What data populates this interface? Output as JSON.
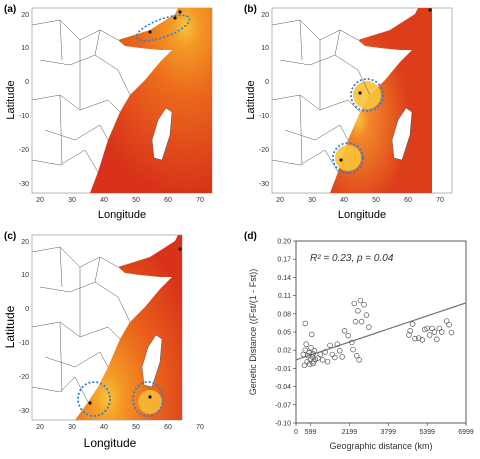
{
  "colors": {
    "sea_red": "#e03a1a",
    "sea_orange": "#f07d1e",
    "sea_yellow": "#f8c33a",
    "land_line": "#555555",
    "madagascar": "#ffffff",
    "circle": "#2a7fd4",
    "point": "#111111",
    "scatter_line": "#777777"
  },
  "panels": [
    {
      "label": "(a)",
      "xlabel": "Longitude",
      "ylabel": "Latitude",
      "x_ticks": [
        "20",
        "30",
        "40",
        "50",
        "60",
        "70"
      ],
      "y_ticks": [
        "20",
        "10",
        "0",
        "-10",
        "-20",
        "-30"
      ]
    },
    {
      "label": "(b)",
      "xlabel": "Longitude",
      "ylabel": "Latitude",
      "x_ticks": [
        "20",
        "30",
        "40",
        "50",
        "60",
        "70"
      ],
      "y_ticks": [
        "20",
        "10",
        "0",
        "-10",
        "-20",
        "-30"
      ]
    },
    {
      "label": "(c)",
      "xlabel": "Longitude",
      "ylabel": "Latitude",
      "x_ticks": [
        "20",
        "30",
        "40",
        "50",
        "60",
        "70"
      ],
      "y_ticks": [
        "20",
        "10",
        "0",
        "-10",
        "-20",
        "-30"
      ]
    }
  ],
  "chart_data": {
    "type": "scatter",
    "label": "(d)",
    "annotation": "R² = 0.23, p = 0.04",
    "xlabel": "Geographic distance (km)",
    "ylabel": "Genetic Distance ((Fst/(1 - Fst))",
    "x_ticks": [
      "0",
      "599",
      "2199",
      "3799",
      "5399",
      "6999"
    ],
    "x_tick_values": [
      0,
      599,
      2199,
      3799,
      5399,
      6999
    ],
    "y_ticks": [
      "0.20",
      "0.17",
      "0.14",
      "0.11",
      "0.08",
      "0.05",
      "0.02",
      "-0.01",
      "-0.04",
      "-0.07",
      "-0.10"
    ],
    "y_tick_values": [
      0.2,
      0.17,
      0.14,
      0.11,
      0.08,
      0.05,
      0.02,
      -0.01,
      -0.04,
      -0.07,
      -0.1
    ],
    "xlim": [
      0,
      6999
    ],
    "ylim": [
      -0.1,
      0.2
    ],
    "trendline": [
      [
        0,
        0.004
      ],
      [
        6999,
        0.098
      ]
    ],
    "points": [
      [
        300,
        0.013
      ],
      [
        350,
        -0.005
      ],
      [
        380,
        0.02
      ],
      [
        420,
        0.03
      ],
      [
        460,
        0.001
      ],
      [
        500,
        0.011
      ],
      [
        540,
        0.016
      ],
      [
        560,
        -0.003
      ],
      [
        600,
        0.005
      ],
      [
        620,
        0.024
      ],
      [
        680,
        0.009
      ],
      [
        700,
        0.014
      ],
      [
        730,
        0.001
      ],
      [
        760,
        0.019
      ],
      [
        800,
        0.005
      ],
      [
        380,
        0.064
      ],
      [
        650,
        0.046
      ],
      [
        700,
        -0.002
      ],
      [
        900,
        0.007
      ],
      [
        1000,
        0.013
      ],
      [
        1100,
        0.004
      ],
      [
        1200,
        0.017
      ],
      [
        1300,
        0.001
      ],
      [
        1400,
        0.028
      ],
      [
        1500,
        0.013
      ],
      [
        1600,
        0.008
      ],
      [
        1700,
        0.03
      ],
      [
        1800,
        0.019
      ],
      [
        1900,
        0.009
      ],
      [
        2000,
        0.052
      ],
      [
        2150,
        0.044
      ],
      [
        2300,
        0.033
      ],
      [
        2400,
        0.097
      ],
      [
        2450,
        0.067
      ],
      [
        2550,
        0.085
      ],
      [
        2650,
        0.102
      ],
      [
        2700,
        0.067
      ],
      [
        2800,
        0.095
      ],
      [
        2900,
        0.078
      ],
      [
        2500,
        0.011
      ],
      [
        2350,
        0.021
      ],
      [
        2600,
        0.004
      ],
      [
        3000,
        0.058
      ],
      [
        4650,
        0.045
      ],
      [
        4700,
        0.052
      ],
      [
        4800,
        0.063
      ],
      [
        4900,
        0.039
      ],
      [
        5200,
        0.037
      ],
      [
        5300,
        0.054
      ],
      [
        5400,
        0.056
      ],
      [
        5500,
        0.045
      ],
      [
        5700,
        0.05
      ],
      [
        5800,
        0.038
      ],
      [
        5900,
        0.056
      ],
      [
        6000,
        0.05
      ],
      [
        6200,
        0.068
      ],
      [
        6300,
        0.062
      ],
      [
        6400,
        0.049
      ],
      [
        5050,
        0.04
      ],
      [
        5600,
        0.056
      ]
    ]
  }
}
